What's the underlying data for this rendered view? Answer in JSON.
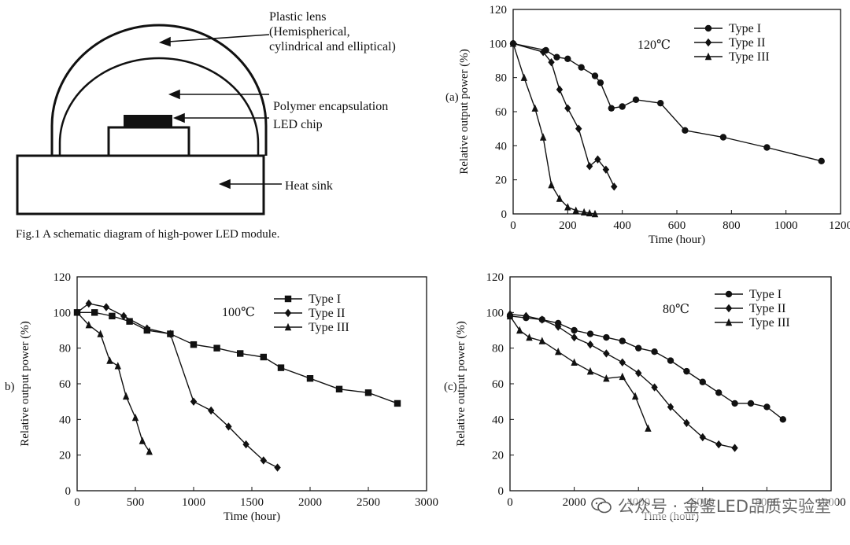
{
  "diagram": {
    "caption": "Fig.1 A schematic diagram of high-power LED module.",
    "labels": {
      "lens_line1": "Plastic lens",
      "lens_line2": "(Hemispherical,",
      "lens_line3": "cylindrical and elliptical)",
      "encapsulation": "Polymer encapsulation",
      "chip": "LED chip",
      "heat_sink": "Heat sink"
    }
  },
  "watermark": {
    "text": "公众号 · 金鉴LED品质实验室",
    "icon": "wechat-icon"
  },
  "chart_data": [
    {
      "id": "a",
      "type": "line",
      "panel_label": "(a)",
      "annotation": "120℃",
      "xlabel": "Time (hour)",
      "ylabel": "Relative output power (%)",
      "xlim": [
        0,
        1200
      ],
      "ylim": [
        0,
        120
      ],
      "xticks": [
        0,
        200,
        400,
        600,
        800,
        1000,
        1200
      ],
      "yticks": [
        0,
        20,
        40,
        60,
        80,
        100,
        120
      ],
      "legend_position": "top-right",
      "series": [
        {
          "name": "Type I",
          "marker": "circle",
          "x": [
            0,
            120,
            160,
            200,
            250,
            300,
            320,
            360,
            400,
            450,
            540,
            630,
            770,
            930,
            1130
          ],
          "y": [
            100,
            96,
            92,
            91,
            86,
            81,
            77,
            62,
            63,
            67,
            65,
            49,
            45,
            39,
            31
          ]
        },
        {
          "name": "Type II",
          "marker": "diamond",
          "x": [
            0,
            110,
            140,
            170,
            200,
            240,
            280,
            310,
            340,
            370
          ],
          "y": [
            100,
            95,
            89,
            73,
            62,
            50,
            28,
            32,
            26,
            16
          ]
        },
        {
          "name": "Type III",
          "marker": "triangle",
          "x": [
            0,
            40,
            80,
            110,
            140,
            170,
            200,
            230,
            260,
            280,
            300
          ],
          "y": [
            100,
            80,
            62,
            45,
            17,
            9,
            4,
            2,
            1,
            0.5,
            0
          ]
        }
      ]
    },
    {
      "id": "b",
      "type": "line",
      "panel_label": "b)",
      "annotation": "100℃",
      "xlabel": "Time (hour)",
      "ylabel": "Relative output power (%)",
      "xlim": [
        0,
        3000
      ],
      "ylim": [
        0,
        120
      ],
      "xticks": [
        0,
        500,
        1000,
        1500,
        2000,
        2500,
        3000
      ],
      "yticks": [
        0,
        20,
        40,
        60,
        80,
        100,
        120
      ],
      "legend_position": "top-right",
      "series": [
        {
          "name": "Type I",
          "marker": "square",
          "x": [
            0,
            150,
            300,
            450,
            600,
            800,
            1000,
            1200,
            1400,
            1600,
            1750,
            2000,
            2250,
            2500,
            2750
          ],
          "y": [
            100,
            100,
            98,
            95,
            90,
            88,
            82,
            80,
            77,
            75,
            69,
            63,
            57,
            55,
            49
          ]
        },
        {
          "name": "Type II",
          "marker": "diamond",
          "x": [
            0,
            100,
            250,
            400,
            600,
            800,
            1000,
            1150,
            1300,
            1450,
            1600,
            1720
          ],
          "y": [
            100,
            105,
            103,
            98,
            91,
            88,
            50,
            45,
            36,
            26,
            17,
            13
          ]
        },
        {
          "name": "Type III",
          "marker": "triangle",
          "x": [
            0,
            100,
            200,
            280,
            350,
            420,
            500,
            560,
            620
          ],
          "y": [
            100,
            93,
            88,
            73,
            70,
            53,
            41,
            28,
            22
          ]
        }
      ]
    },
    {
      "id": "c",
      "type": "line",
      "panel_label": "(c)",
      "annotation": "80℃",
      "xlabel": "Time (hour)",
      "ylabel": "Relative output power (%)",
      "xlim": [
        0,
        10000
      ],
      "ylim": [
        0,
        120
      ],
      "xticks": [
        0,
        2000,
        4000,
        6000,
        8000,
        10000
      ],
      "xtick_labels": [
        "0",
        "2000",
        "4000",
        "6000",
        "8000",
        "10000"
      ],
      "yticks": [
        0,
        20,
        40,
        60,
        80,
        100,
        120
      ],
      "legend_position": "top-right",
      "series": [
        {
          "name": "Type I",
          "marker": "circle",
          "x": [
            0,
            500,
            1000,
            1500,
            2000,
            2500,
            3000,
            3500,
            4000,
            4500,
            5000,
            5500,
            6000,
            6500,
            7000,
            7500,
            8000,
            8500
          ],
          "y": [
            98,
            97,
            96,
            94,
            90,
            88,
            86,
            84,
            80,
            78,
            73,
            67,
            61,
            55,
            49,
            49,
            47,
            40
          ]
        },
        {
          "name": "Type II",
          "marker": "diamond",
          "x": [
            0,
            500,
            1000,
            1500,
            2000,
            2500,
            3000,
            3500,
            4000,
            4500,
            5000,
            5500,
            6000,
            6500,
            7000
          ],
          "y": [
            99,
            98,
            96,
            92,
            86,
            82,
            77,
            72,
            66,
            58,
            47,
            38,
            30,
            26,
            24
          ]
        },
        {
          "name": "Type III",
          "marker": "triangle",
          "x": [
            0,
            300,
            600,
            1000,
            1500,
            2000,
            2500,
            3000,
            3500,
            3900,
            4300
          ],
          "y": [
            98,
            90,
            86,
            84,
            78,
            72,
            67,
            63,
            64,
            53,
            35
          ]
        }
      ]
    }
  ]
}
